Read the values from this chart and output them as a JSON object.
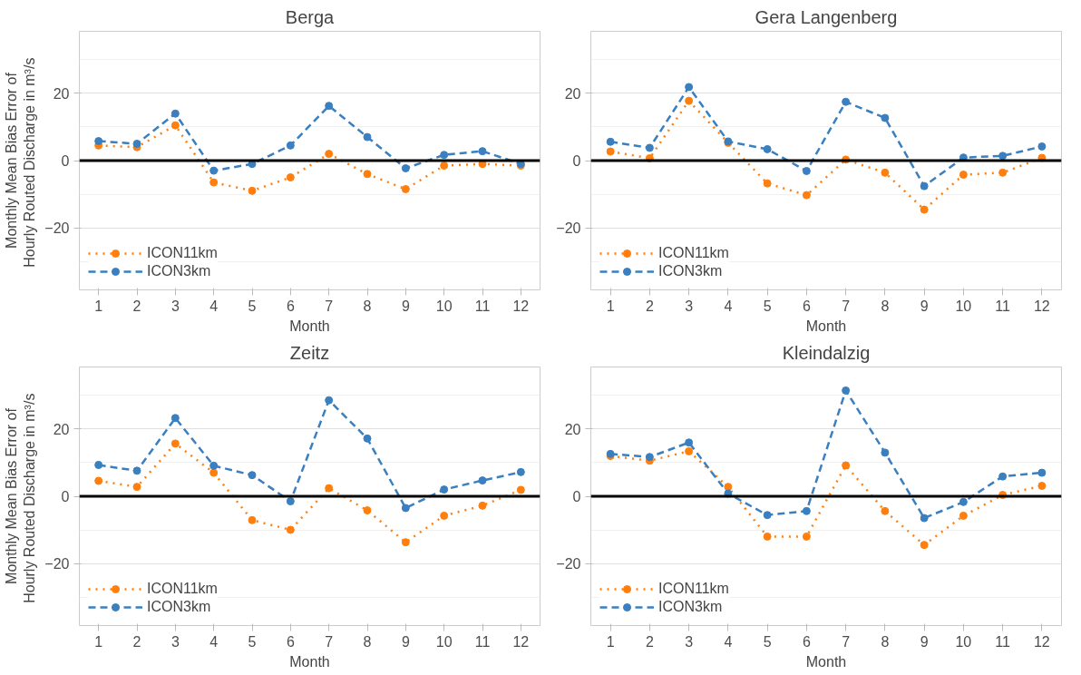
{
  "chart_data": [
    {
      "type": "line",
      "title": "Berga",
      "xlabel": "Month",
      "ylabel": "Monthly Mean Bias Error of Hourly Routed Discharge in  m³/s",
      "x": [
        1,
        2,
        3,
        4,
        5,
        6,
        7,
        8,
        9,
        10,
        11,
        12
      ],
      "xlim": [
        0.5,
        12.5
      ],
      "xticks": [
        1,
        2,
        3,
        4,
        5,
        6,
        7,
        8,
        9,
        10,
        11,
        12
      ],
      "ylim": [
        -38.5,
        38.5
      ],
      "yticks": [
        -20,
        0,
        20
      ],
      "grid": true,
      "legend": "bottom left",
      "marker": "circle",
      "ref_lines": [
        {
          "axis": "y",
          "value": 0,
          "color": "#000000"
        }
      ],
      "series": [
        {
          "name": "ICON11km",
          "color": "#ff7f0e",
          "line_style": "dotted",
          "values": [
            4.5,
            4,
            10.5,
            -6.5,
            -9,
            -5,
            2,
            -4,
            -8.5,
            -1.5,
            -1,
            -1.5
          ]
        },
        {
          "name": "ICON3km",
          "color": "#3a7fbf",
          "line_style": "dashed",
          "values": [
            5.8,
            5,
            14,
            -3,
            -1,
            4.5,
            16.3,
            7,
            -2.3,
            1.7,
            2.8,
            -1
          ]
        }
      ]
    },
    {
      "type": "line",
      "title": "Gera Langenberg",
      "xlabel": "Month",
      "x": [
        1,
        2,
        3,
        4,
        5,
        6,
        7,
        8,
        9,
        10,
        11,
        12
      ],
      "xlim": [
        0.5,
        12.5
      ],
      "xticks": [
        1,
        2,
        3,
        4,
        5,
        6,
        7,
        8,
        9,
        10,
        11,
        12
      ],
      "ylim": [
        -38.5,
        38.5
      ],
      "yticks": [
        -20,
        0,
        20
      ],
      "grid": true,
      "legend": "bottom left",
      "marker": "circle",
      "ref_lines": [
        {
          "axis": "y",
          "value": 0,
          "color": "#000000"
        }
      ],
      "series": [
        {
          "name": "ICON11km",
          "color": "#ff7f0e",
          "line_style": "dotted",
          "values": [
            2.7,
            0.7,
            17.8,
            5.3,
            -6.8,
            -10.3,
            0.3,
            -3.6,
            -14.6,
            -4.2,
            -3.6,
            0.8
          ]
        },
        {
          "name": "ICON3km",
          "color": "#3a7fbf",
          "line_style": "dashed",
          "values": [
            5.6,
            3.8,
            21.9,
            5.7,
            3.4,
            -3.1,
            17.5,
            12.7,
            -7.6,
            0.9,
            1.4,
            4.2
          ]
        }
      ]
    },
    {
      "type": "line",
      "title": "Zeitz",
      "xlabel": "Month",
      "ylabel": "Monthly Mean Bias Error of Hourly Routed Discharge in  m³/s",
      "x": [
        1,
        2,
        3,
        4,
        5,
        6,
        7,
        8,
        9,
        10,
        11,
        12
      ],
      "xlim": [
        0.5,
        12.5
      ],
      "xticks": [
        1,
        2,
        3,
        4,
        5,
        6,
        7,
        8,
        9,
        10,
        11,
        12
      ],
      "ylim": [
        -38.5,
        38.5
      ],
      "yticks": [
        -20,
        0,
        20
      ],
      "grid": true,
      "legend": "bottom left",
      "marker": "circle",
      "ref_lines": [
        {
          "axis": "y",
          "value": 0,
          "color": "#000000"
        }
      ],
      "series": [
        {
          "name": "ICON11km",
          "color": "#ff7f0e",
          "line_style": "dotted",
          "values": [
            4.6,
            2.8,
            15.7,
            7,
            -7.1,
            -10,
            2.4,
            -4.2,
            -13.7,
            -5.8,
            -2.8,
            1.9
          ]
        },
        {
          "name": "ICON3km",
          "color": "#3a7fbf",
          "line_style": "dashed",
          "values": [
            9.3,
            7.6,
            23.3,
            9.1,
            6.3,
            -1.5,
            28.6,
            17.2,
            -3.5,
            2,
            4.7,
            7.2
          ]
        }
      ]
    },
    {
      "type": "line",
      "title": "Kleindalzig",
      "xlabel": "Month",
      "x": [
        1,
        2,
        3,
        4,
        5,
        6,
        7,
        8,
        9,
        10,
        11,
        12
      ],
      "xlim": [
        0.5,
        12.5
      ],
      "xticks": [
        1,
        2,
        3,
        4,
        5,
        6,
        7,
        8,
        9,
        10,
        11,
        12
      ],
      "ylim": [
        -38.5,
        38.5
      ],
      "yticks": [
        -20,
        0,
        20
      ],
      "grid": true,
      "legend": "bottom left",
      "marker": "circle",
      "ref_lines": [
        {
          "axis": "y",
          "value": 0,
          "color": "#000000"
        }
      ],
      "series": [
        {
          "name": "ICON11km",
          "color": "#ff7f0e",
          "line_style": "dotted",
          "values": [
            12,
            10.6,
            13.4,
            2.8,
            -12,
            -12,
            9.2,
            -4.4,
            -14.5,
            -5.8,
            0.4,
            3.1
          ]
        },
        {
          "name": "ICON3km",
          "color": "#3a7fbf",
          "line_style": "dashed",
          "values": [
            12.6,
            11.7,
            16,
            0.8,
            -5.6,
            -4.4,
            31.5,
            13,
            -6.5,
            -1.7,
            5.9,
            7
          ]
        }
      ]
    }
  ]
}
